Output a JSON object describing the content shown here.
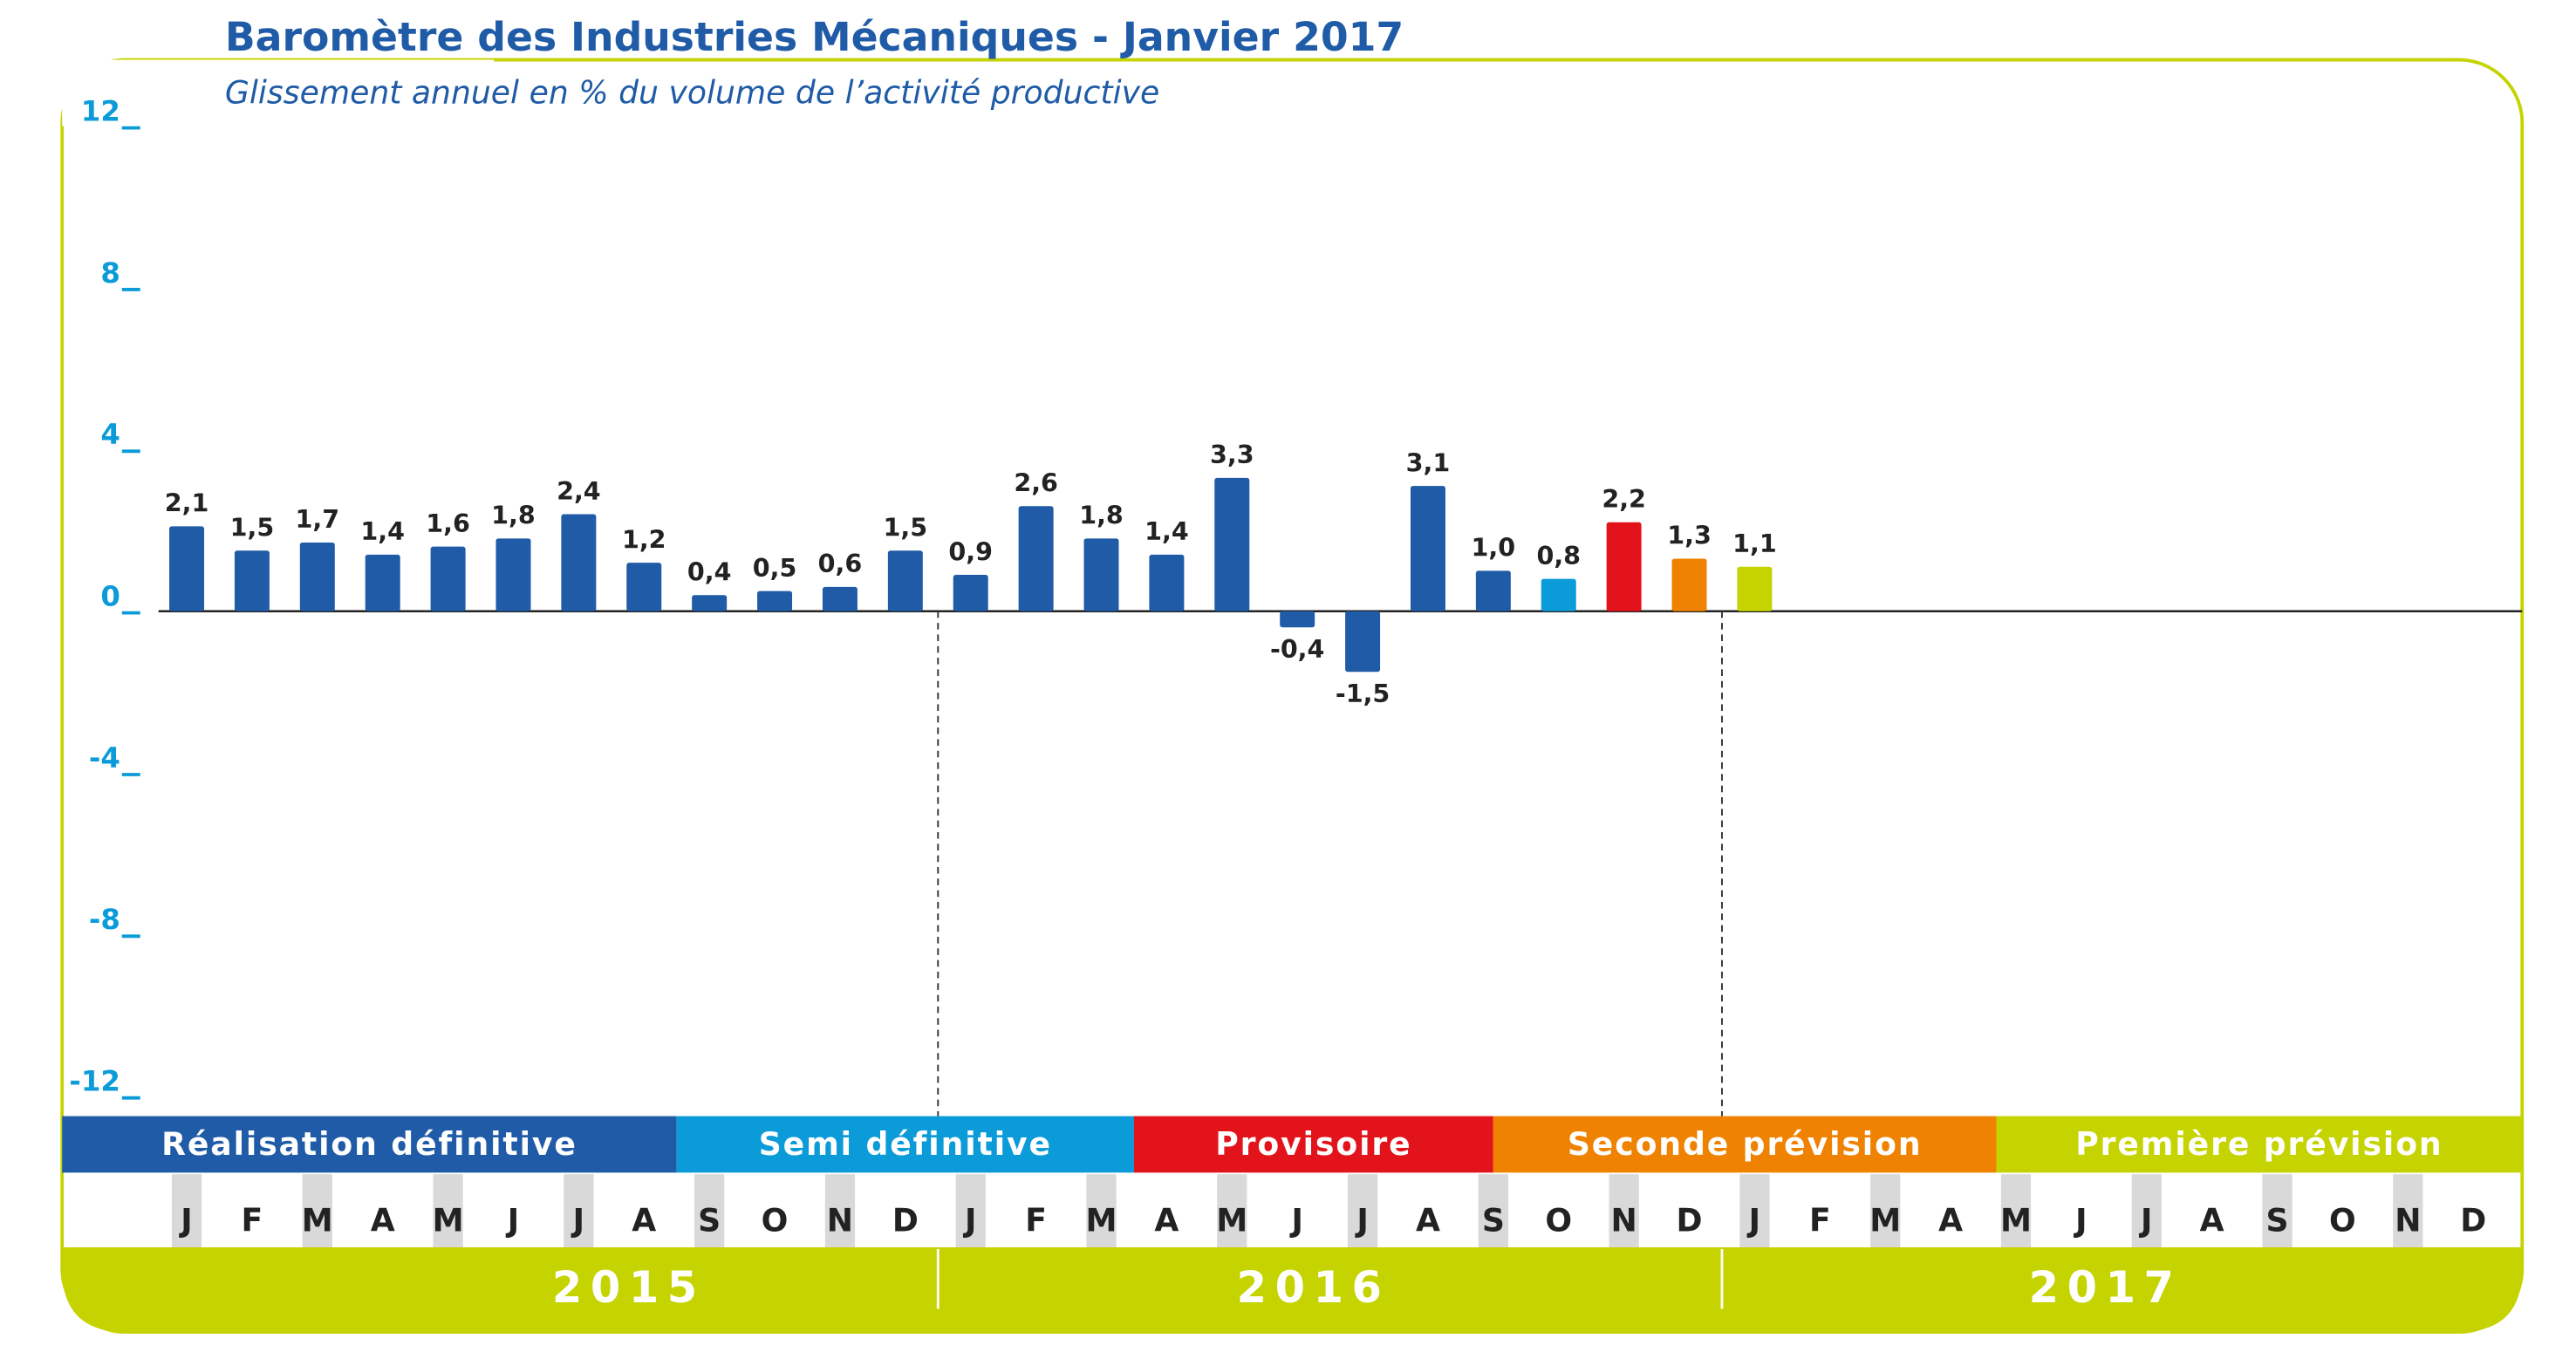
{
  "chart_data": {
    "type": "bar",
    "title": "Baromètre des Industries Mécaniques - Janvier 2017",
    "subtitle": "Glissement annuel en % du volume de l’activité productive",
    "categories": [
      "J",
      "F",
      "M",
      "A",
      "M",
      "J",
      "J",
      "A",
      "S",
      "O",
      "N",
      "D",
      "J",
      "F",
      "M",
      "A",
      "M",
      "J",
      "J",
      "A",
      "S",
      "O",
      "N",
      "D",
      "J",
      "F",
      "M",
      "A",
      "M",
      "J",
      "J",
      "A",
      "S",
      "O",
      "N",
      "D"
    ],
    "years": [
      "2015",
      "2016",
      "2017"
    ],
    "series": [
      {
        "values": [
          2.1,
          1.5,
          1.7,
          1.4,
          1.6,
          1.8,
          2.4,
          1.2,
          0.4,
          0.5,
          0.6,
          1.5,
          0.9,
          2.6,
          1.8,
          1.4,
          3.3,
          -0.4,
          -1.5,
          3.1,
          1.0,
          0.8,
          2.2,
          1.3,
          1.1,
          null,
          null,
          null,
          null,
          null,
          null,
          null,
          null,
          null,
          null,
          null
        ],
        "value_labels": [
          "2,1",
          "1,5",
          "1,7",
          "1,4",
          "1,6",
          "1,8",
          "2,4",
          "1,2",
          "0,4",
          "0,5",
          "0,6",
          "1,5",
          "0,9",
          "2,6",
          "1,8",
          "1,4",
          "3,3",
          "-0,4",
          "-1,5",
          "3,1",
          "1,0",
          "0,8",
          "2,2",
          "1,3",
          "1,1",
          null,
          null,
          null,
          null,
          null,
          null,
          null,
          null,
          null,
          null,
          null
        ],
        "colors": [
          "#1f5ba6",
          "#1f5ba6",
          "#1f5ba6",
          "#1f5ba6",
          "#1f5ba6",
          "#1f5ba6",
          "#1f5ba6",
          "#1f5ba6",
          "#1f5ba6",
          "#1f5ba6",
          "#1f5ba6",
          "#1f5ba6",
          "#1f5ba6",
          "#1f5ba6",
          "#1f5ba6",
          "#1f5ba6",
          "#1f5ba6",
          "#1f5ba6",
          "#1f5ba6",
          "#1f5ba6",
          "#1f5ba6",
          "#0b9bd8",
          "#e3131b",
          "#ef8200",
          "#c5d300",
          null,
          null,
          null,
          null,
          null,
          null,
          null,
          null,
          null,
          null,
          null
        ]
      }
    ],
    "ylim": [
      -12,
      12
    ],
    "yticks": [
      12,
      8,
      4,
      0,
      -4,
      -8,
      -12
    ],
    "phases": [
      {
        "name": "Réalisation définitive",
        "color": "#1f5ba6"
      },
      {
        "name": "Semi définitive",
        "color": "#0b9bd8"
      },
      {
        "name": "Provisoire",
        "color": "#e3131b"
      },
      {
        "name": "Seconde prévision",
        "color": "#ef8200"
      },
      {
        "name": "Première prévision",
        "color": "#c5d300"
      }
    ]
  }
}
